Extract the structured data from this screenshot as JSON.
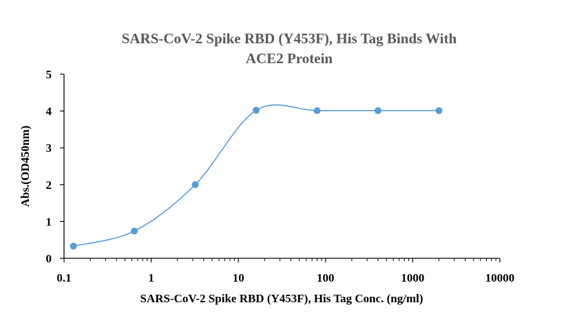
{
  "chart_data": {
    "type": "scatter",
    "title": "SARS-CoV-2 Spike RBD (Y453F), His Tag Binds With ACE2 Protein",
    "title_lines": [
      "SARS-CoV-2 Spike RBD (Y453F), His Tag Binds With",
      "ACE2 Protein"
    ],
    "xlabel": "SARS-CoV-2 Spike RBD (Y453F), His Tag Conc. (ng/ml)",
    "ylabel": "Abs.(OD450nm)",
    "x_scale": "log",
    "xlim": [
      0.1,
      10000
    ],
    "ylim": [
      0,
      5
    ],
    "x_ticks": [
      "0.1",
      "1",
      "10",
      "100",
      "1000",
      "10000"
    ],
    "y_ticks": [
      "0",
      "1",
      "2",
      "3",
      "4",
      "5"
    ],
    "grid": false,
    "smooth_line": true,
    "series": [
      {
        "x": [
          0.128,
          0.64,
          3.2,
          16,
          80,
          400,
          2000
        ],
        "y": [
          0.33,
          0.74,
          2.0,
          4.02,
          4.01,
          4.01,
          4.01
        ]
      }
    ],
    "colors": {
      "series": "#5b9bd5",
      "axis": "#000000",
      "title": "#595959"
    }
  }
}
